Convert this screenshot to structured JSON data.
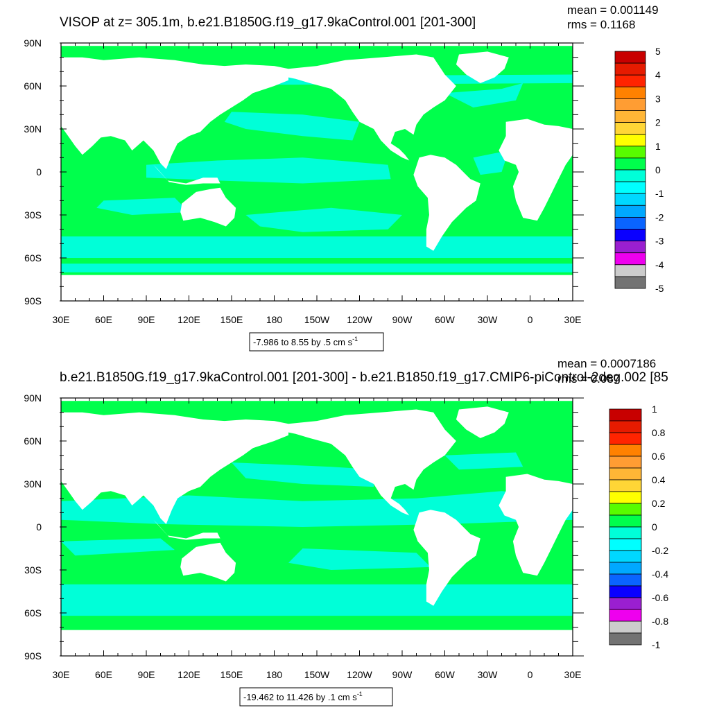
{
  "chart_data": [
    {
      "type": "heatmap",
      "title": "VISOP at z= 305.1m, b.e21.B1850G.f19_g17.9kaControl.001 [201-300]",
      "stats": {
        "mean": "mean = 0.001149",
        "rms": "rms = 0.1168"
      },
      "xticks": [
        "30E",
        "60E",
        "90E",
        "120E",
        "150E",
        "180",
        "150W",
        "120W",
        "90W",
        "60W",
        "30W",
        "0",
        "30E"
      ],
      "yticks": [
        "90N",
        "60N",
        "30N",
        "0",
        "30S",
        "60S",
        "90S"
      ],
      "colorbar": {
        "levels": [
          "5",
          "4",
          "3",
          "2",
          "1",
          "0",
          "-1",
          "-2",
          "-3",
          "-4",
          "-5"
        ]
      },
      "range_label": {
        "text": "-7.986 to 8.55 by .5 cm s",
        "exp": "-1"
      },
      "xlim": [
        30,
        390
      ],
      "ylim": [
        -90,
        90
      ],
      "legend_placement": "right"
    },
    {
      "type": "heatmap",
      "title": "b.e21.B1850G.f19_g17.9kaControl.001 [201-300] - b.e21.B1850.f19_g17.CMIP6-piControl-2deg.002 [85",
      "stats": {
        "mean": "mean = 0.0007186",
        "rms": "rms = 0.087"
      },
      "xticks": [
        "30E",
        "60E",
        "90E",
        "120E",
        "150E",
        "180",
        "150W",
        "120W",
        "90W",
        "60W",
        "30W",
        "0",
        "30E"
      ],
      "yticks": [
        "90N",
        "60N",
        "30N",
        "0",
        "30S",
        "60S",
        "90S"
      ],
      "colorbar": {
        "levels": [
          "1",
          "0.8",
          "0.6",
          "0.4",
          "0.2",
          "0",
          "-0.2",
          "-0.4",
          "-0.6",
          "-0.8",
          "-1"
        ]
      },
      "range_label": {
        "text": "-19.462 to 11.426 by .1 cm s",
        "exp": "-1"
      },
      "xlim": [
        30,
        390
      ],
      "ylim": [
        -90,
        90
      ],
      "legend_placement": "right"
    }
  ],
  "colors": {
    "ocean_green": "#00ff4c",
    "ocean_cyan": "#00ffd8",
    "land": "#ffffff",
    "palette": [
      "#ffffff",
      "#737373",
      "#cccccc",
      "#ee00ee",
      "#9a1fd0",
      "#0a00ff",
      "#0a64ff",
      "#00a8ff",
      "#00d8ff",
      "#00ffff",
      "#00ffd8",
      "#00ff4c",
      "#58fc00",
      "#ffff00",
      "#ffd636",
      "#ffb636",
      "#ff9d33",
      "#ff8100",
      "#ff2400",
      "#e61b00",
      "#c80000"
    ]
  }
}
